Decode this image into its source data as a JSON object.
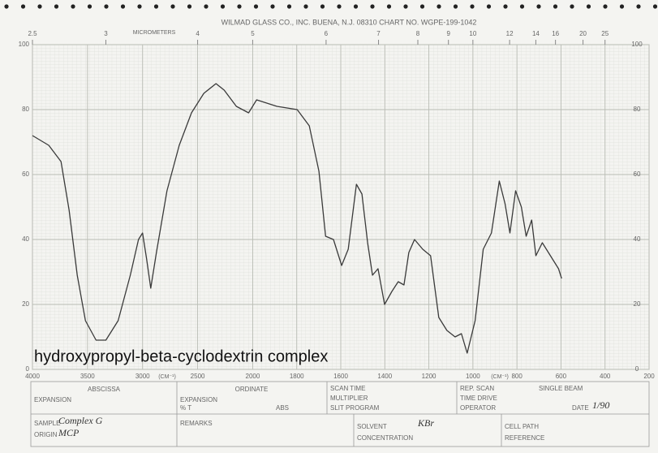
{
  "chart_data": {
    "type": "line",
    "header": "WILMAD GLASS CO., INC.   BUENA, N.J. 08310   CHART NO. WGPE-199-1042",
    "top_label": "MICROMETERS",
    "top_ticks": [
      2.5,
      3,
      4,
      5,
      6,
      7,
      8,
      9,
      10,
      12,
      14,
      16,
      20,
      25
    ],
    "x_label": "(CM⁻¹)",
    "annotation": "hydroxypropyl-beta-cyclodextrin complex",
    "color": "#3a3a3a",
    "x": [
      4000,
      3852,
      3741,
      3667,
      3593,
      3519,
      3422,
      3333,
      3222,
      3111,
      3037,
      3000,
      2963,
      2926,
      2874,
      2778,
      2667,
      2556,
      2444,
      2333,
      2259,
      2148,
      2037,
      1982,
      1890,
      1798,
      1743,
      1699,
      1669,
      1633,
      1596,
      1566,
      1529,
      1504,
      1478,
      1456,
      1431,
      1401,
      1368,
      1339,
      1313,
      1291,
      1265,
      1228,
      1192,
      1155,
      1118,
      1081,
      1052,
      1026,
      990,
      953,
      916,
      880,
      854,
      832,
      806,
      780,
      758,
      733,
      714,
      685,
      648,
      611,
      597
    ],
    "values": [
      72,
      69,
      64,
      49,
      29,
      15,
      9,
      9,
      15,
      29,
      40,
      42,
      34,
      25,
      36,
      55,
      69,
      79,
      85,
      88,
      86,
      81,
      79,
      83,
      81,
      80,
      75,
      61,
      41,
      40,
      32,
      37,
      57,
      54,
      39,
      29,
      31,
      20,
      24,
      27,
      26,
      36,
      40,
      37,
      35,
      16,
      12,
      10,
      11,
      5,
      15,
      37,
      42,
      58,
      51,
      42,
      55,
      50,
      41,
      46,
      35,
      39,
      35,
      31,
      28
    ],
    "xlim": [
      4000,
      200
    ],
    "xticks": [
      4000,
      3500,
      3000,
      2500,
      2000,
      1800,
      1600,
      1400,
      1200,
      1000,
      800,
      600,
      400,
      200
    ],
    "ylim": [
      0,
      100
    ],
    "yticks": [
      0,
      20,
      40,
      60,
      80,
      100
    ],
    "grid": true
  },
  "form": {
    "abscissa": "ABSCISSA",
    "abscissa_expansion": "EXPANSION",
    "ordinate": "ORDINATE",
    "ordinate_expansion": "EXPANSION",
    "percent_t": "% T",
    "abs": "ABS",
    "scan_time": "SCAN TIME",
    "multiplier": "MULTIPLIER",
    "slit_program": "SLIT PROGRAM",
    "rep_scan": "REP. SCAN",
    "single_beam": "SINGLE BEAM",
    "time_drive": "TIME DRIVE",
    "operator": "OPERATOR",
    "date_label": "DATE",
    "date": "1/90",
    "sample_label": "SAMPLE",
    "sample": "Complex G",
    "origin_label": "ORIGIN",
    "origin": "MCP",
    "remarks": "REMARKS",
    "solvent_label": "SOLVENT",
    "solvent": "KBr",
    "concentration": "CONCENTRATION",
    "cell_path": "CELL PATH",
    "reference": "REFERENCE"
  }
}
